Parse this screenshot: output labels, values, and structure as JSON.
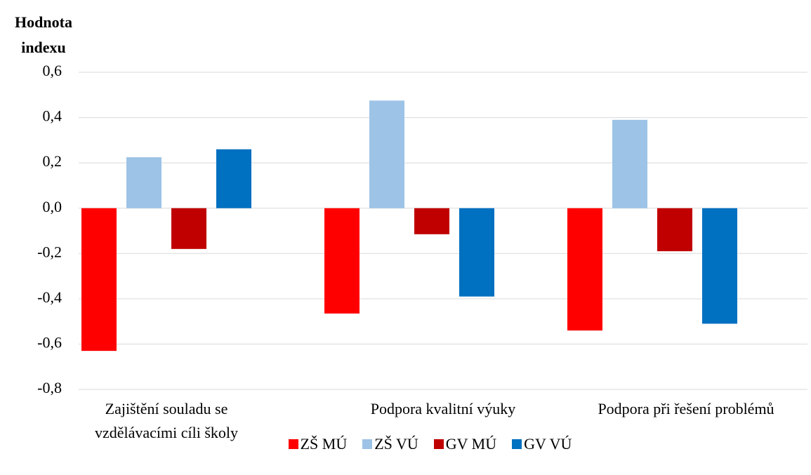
{
  "chart_data": {
    "type": "bar",
    "y_label": "Hodnota indexu",
    "categories": [
      "Zajištění souladu se vzdělávacími cíli školy",
      "Podpora kvalitní výuky",
      "Podpora při řešení problémů"
    ],
    "series": [
      {
        "name": "ZŠ MÚ",
        "color": "#ff0000",
        "values": [
          -0.63,
          -0.465,
          -0.54
        ]
      },
      {
        "name": "ZŠ VÚ",
        "color": "#9dc3e6",
        "values": [
          0.225,
          0.475,
          0.39
        ]
      },
      {
        "name": "GV MÚ",
        "color": "#c00000",
        "values": [
          -0.18,
          -0.115,
          -0.19
        ]
      },
      {
        "name": "GV VÚ",
        "color": "#0070c0",
        "values": [
          0.26,
          -0.39,
          -0.51
        ]
      }
    ],
    "ylim": [
      -0.8,
      0.6
    ],
    "yticks": [
      {
        "value": -0.8,
        "label": "-0,8"
      },
      {
        "value": -0.6,
        "label": "-0,6"
      },
      {
        "value": -0.4,
        "label": "-0,4"
      },
      {
        "value": -0.2,
        "label": "-0,2"
      },
      {
        "value": 0,
        "label": "0,0"
      },
      {
        "value": 0.2,
        "label": "0,2"
      },
      {
        "value": 0.4,
        "label": "0,4"
      },
      {
        "value": 0.6,
        "label": "0,6"
      }
    ],
    "grid": true,
    "legend": "bottom"
  }
}
